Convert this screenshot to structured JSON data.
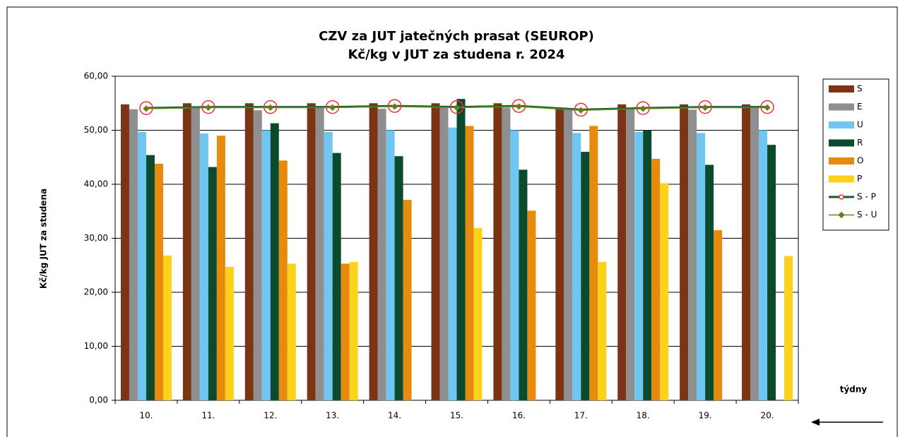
{
  "chart_data": {
    "type": "bar",
    "title": "CZV za JUT jatečných prasat (SEUROP)",
    "subtitle": "Kč/kg v JUT za studena r. 2024",
    "y_label": "Kč/kg JUT za studena",
    "x_label": "týdny",
    "categories": [
      "10.",
      "11.",
      "12.",
      "13.",
      "14.",
      "15.",
      "16.",
      "17.",
      "18.",
      "19.",
      "20."
    ],
    "series": [
      {
        "name": "S",
        "color": "#7b3515",
        "values": [
          54.8,
          55.0,
          55.0,
          55.0,
          55.0,
          55.0,
          55.0,
          54.2,
          54.8,
          54.8,
          54.8
        ]
      },
      {
        "name": "E",
        "color": "#8f8f8f",
        "values": [
          53.9,
          54.2,
          53.7,
          54.3,
          54.0,
          54.5,
          54.2,
          53.8,
          54.0,
          53.8,
          54.5
        ]
      },
      {
        "name": "U",
        "color": "#6fc6f0",
        "values": [
          49.7,
          49.4,
          50.0,
          49.7,
          50.0,
          50.5,
          50.0,
          49.5,
          49.7,
          49.5,
          50.0
        ]
      },
      {
        "name": "R",
        "color": "#0b4a2d",
        "values": [
          45.4,
          43.2,
          51.3,
          45.8,
          45.2,
          55.8,
          42.7,
          46.0,
          50.0,
          43.6,
          47.3
        ]
      },
      {
        "name": "O",
        "color": "#e68b0e",
        "values": [
          43.8,
          49.0,
          44.4,
          25.3,
          37.1,
          50.8,
          35.1,
          50.8,
          44.7,
          31.5,
          null
        ]
      },
      {
        "name": "P",
        "color": "#fdd21d",
        "values": [
          26.8,
          24.7,
          25.3,
          25.6,
          null,
          31.9,
          null,
          25.6,
          40.2,
          null,
          26.7
        ]
      },
      {
        "name": "S - P",
        "type": "line",
        "color": "#1d5a2b",
        "marker_color": "#f03030",
        "values": [
          54.1,
          54.3,
          54.3,
          54.3,
          54.5,
          54.3,
          54.5,
          53.8,
          54.1,
          54.3,
          54.3
        ]
      },
      {
        "name": "S - U",
        "type": "line",
        "color": "#5b8e1f",
        "marker_color": "#8a6a10",
        "values": [
          54.0,
          54.2,
          54.2,
          54.2,
          54.4,
          54.2,
          54.4,
          53.7,
          54.0,
          54.2,
          54.2
        ]
      }
    ],
    "ylim": [
      0,
      60
    ],
    "yticks": [
      {
        "value": 0,
        "label": "0,00"
      },
      {
        "value": 10,
        "label": "10,00"
      },
      {
        "value": 20,
        "label": "20,00"
      },
      {
        "value": 30,
        "label": "30,00"
      },
      {
        "value": 40,
        "label": "40,00"
      },
      {
        "value": 50,
        "label": "50,00"
      },
      {
        "value": 60,
        "label": "60,00"
      }
    ],
    "grid": true,
    "legend": "right"
  }
}
